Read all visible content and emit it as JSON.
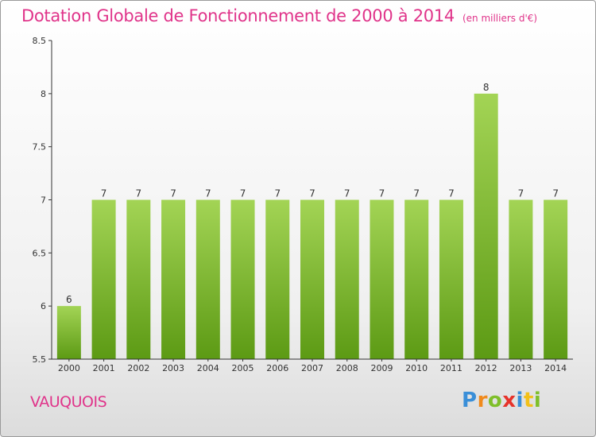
{
  "header": {
    "title": "Dotation Globale de Fonctionnement de 2000 à 2014",
    "unit": "(en milliers d'€)"
  },
  "footer": {
    "commune": "VAUQUOIS",
    "logo": "Proxiti",
    "logo_colors": [
      "#3a8fd8",
      "#f08a1c",
      "#7fbf2a",
      "#e6332a",
      "#3a8fd8",
      "#f2c01a",
      "#7fbf2a"
    ]
  },
  "colors": {
    "bar_light": "#a3d455",
    "bar_dark": "#5c9a14",
    "axis": "#333333",
    "title": "#e0348a"
  },
  "chart_data": {
    "type": "bar",
    "title": "Dotation Globale de Fonctionnement de 2000 à 2014",
    "categories": [
      "2000",
      "2001",
      "2002",
      "2003",
      "2004",
      "2005",
      "2006",
      "2007",
      "2008",
      "2009",
      "2010",
      "2011",
      "2012",
      "2013",
      "2014"
    ],
    "values": [
      6,
      7,
      7,
      7,
      7,
      7,
      7,
      7,
      7,
      7,
      7,
      7,
      8,
      7,
      7
    ],
    "data_labels": [
      "6",
      "7",
      "7",
      "7",
      "7",
      "7",
      "7",
      "7",
      "7",
      "7",
      "7",
      "7",
      "8",
      "7",
      "7"
    ],
    "ylim": [
      5.5,
      8.5
    ],
    "yticks": [
      "5.5",
      "6",
      "6.5",
      "7",
      "7.5",
      "8",
      "8.5"
    ],
    "grid": false
  }
}
